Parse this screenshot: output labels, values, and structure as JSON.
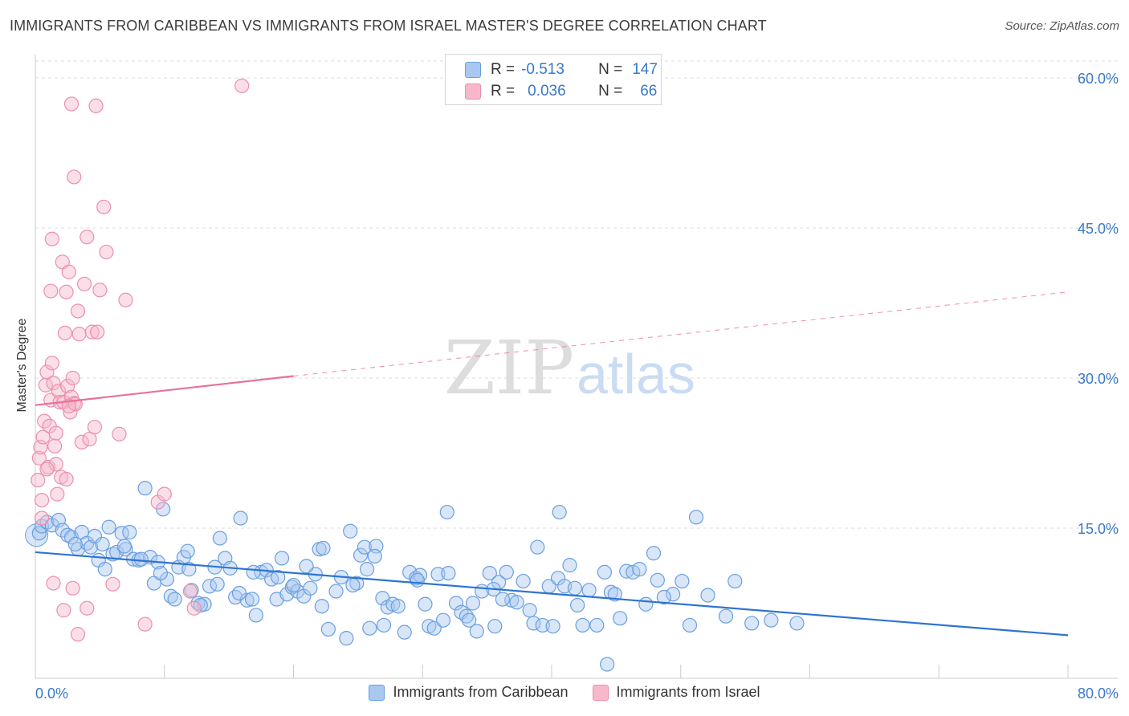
{
  "title": "IMMIGRANTS FROM CARIBBEAN VS IMMIGRANTS FROM ISRAEL MASTER'S DEGREE CORRELATION CHART",
  "source": "Source: ZipAtlas.com",
  "watermark": {
    "zip": "ZIP",
    "atlas": "atlas"
  },
  "colors": {
    "blue_fill": "#a8c8f0",
    "blue_stroke": "#6a9fe0",
    "blue_line": "#2f74d0",
    "pink_fill": "#f7b8cb",
    "pink_stroke": "#ec8fab",
    "pink_line": "#e8709a",
    "tick_label": "#3a78c9"
  },
  "stats": {
    "rows": [
      {
        "r_label": "R =",
        "r_value": "-0.513",
        "n_label": "N =",
        "n_value": "147"
      },
      {
        "r_label": "R =",
        "r_value": "0.036",
        "n_label": "N =",
        "n_value": "66"
      }
    ]
  },
  "legend": [
    "Immigrants from Caribbean",
    "Immigrants from Israel"
  ],
  "chart_data": {
    "type": "scatter",
    "xlabel": "",
    "ylabel": "Master's Degree",
    "xlim": [
      0,
      80
    ],
    "ylim": [
      0,
      62
    ],
    "x_tick_labels": [
      "0.0%",
      "80.0%"
    ],
    "y_ticks": [
      15,
      30,
      45,
      60
    ],
    "y_tick_labels": [
      "15.0%",
      "30.0%",
      "45.0%",
      "60.0%"
    ],
    "grid": "horizontal dashed",
    "legend_position": "bottom",
    "series": [
      {
        "name": "Immigrants from Caribbean",
        "color": "#a8c8f0",
        "trend": {
          "x": [
            0,
            80
          ],
          "y": [
            12.6,
            4.3
          ],
          "style": "solid"
        },
        "points": [
          [
            0.3,
            14.5
          ],
          [
            0.5,
            15.2
          ],
          [
            0.9,
            15.6
          ],
          [
            1.3,
            15.3
          ],
          [
            1.8,
            15.8
          ],
          [
            2.1,
            14.8
          ],
          [
            2.5,
            14.3
          ],
          [
            2.8,
            14.1
          ],
          [
            3.3,
            12.9
          ],
          [
            3.6,
            14.6
          ],
          [
            4.0,
            13.5
          ],
          [
            4.3,
            13.1
          ],
          [
            4.6,
            14.2
          ],
          [
            4.9,
            11.8
          ],
          [
            5.2,
            13.4
          ],
          [
            5.7,
            15.1
          ],
          [
            6.0,
            12.4
          ],
          [
            6.3,
            12.6
          ],
          [
            6.7,
            14.5
          ],
          [
            7.0,
            12.9
          ],
          [
            7.3,
            14.6
          ],
          [
            7.6,
            11.9
          ],
          [
            8.0,
            11.8
          ],
          [
            8.5,
            19.0
          ],
          [
            8.9,
            12.1
          ],
          [
            9.2,
            9.5
          ],
          [
            9.5,
            11.6
          ],
          [
            9.9,
            16.9
          ],
          [
            10.2,
            9.9
          ],
          [
            10.5,
            8.2
          ],
          [
            10.8,
            7.9
          ],
          [
            11.1,
            11.1
          ],
          [
            11.5,
            12.1
          ],
          [
            11.9,
            10.9
          ],
          [
            12.1,
            8.8
          ],
          [
            12.6,
            7.5
          ],
          [
            13.1,
            7.4
          ],
          [
            13.5,
            9.2
          ],
          [
            13.9,
            11.1
          ],
          [
            14.3,
            14.0
          ],
          [
            14.7,
            12.0
          ],
          [
            15.1,
            11.0
          ],
          [
            15.5,
            8.1
          ],
          [
            15.9,
            16.0
          ],
          [
            16.4,
            7.8
          ],
          [
            16.8,
            7.9
          ],
          [
            17.1,
            6.3
          ],
          [
            17.5,
            10.6
          ],
          [
            17.9,
            10.8
          ],
          [
            18.3,
            9.9
          ],
          [
            18.7,
            7.9
          ],
          [
            19.1,
            12.0
          ],
          [
            19.5,
            8.4
          ],
          [
            19.9,
            9.1
          ],
          [
            20.3,
            8.7
          ],
          [
            20.8,
            8.2
          ],
          [
            21.3,
            9.0
          ],
          [
            21.7,
            10.4
          ],
          [
            22.0,
            12.9
          ],
          [
            22.3,
            13.0
          ],
          [
            22.7,
            4.9
          ],
          [
            23.3,
            8.7
          ],
          [
            23.7,
            10.1
          ],
          [
            24.1,
            4.0
          ],
          [
            24.4,
            14.7
          ],
          [
            24.9,
            9.5
          ],
          [
            25.2,
            12.3
          ],
          [
            25.5,
            13.1
          ],
          [
            25.9,
            5.0
          ],
          [
            26.4,
            13.2
          ],
          [
            26.9,
            8.0
          ],
          [
            27.3,
            7.1
          ],
          [
            27.7,
            7.4
          ],
          [
            28.1,
            7.2
          ],
          [
            28.6,
            4.6
          ],
          [
            29.0,
            10.6
          ],
          [
            29.5,
            10.0
          ],
          [
            29.8,
            10.3
          ],
          [
            30.2,
            7.4
          ],
          [
            30.5,
            5.2
          ],
          [
            30.9,
            5.0
          ],
          [
            31.2,
            10.4
          ],
          [
            31.6,
            5.8
          ],
          [
            32.0,
            10.5
          ],
          [
            32.6,
            7.5
          ],
          [
            33.0,
            6.6
          ],
          [
            33.4,
            6.2
          ],
          [
            33.9,
            7.5
          ],
          [
            34.2,
            4.7
          ],
          [
            34.6,
            8.7
          ],
          [
            35.2,
            10.5
          ],
          [
            35.6,
            5.2
          ],
          [
            35.9,
            9.6
          ],
          [
            36.5,
            10.6
          ],
          [
            36.9,
            7.8
          ],
          [
            37.3,
            7.6
          ],
          [
            37.8,
            9.7
          ],
          [
            38.3,
            6.8
          ],
          [
            38.6,
            5.5
          ],
          [
            38.9,
            13.1
          ],
          [
            39.3,
            5.3
          ],
          [
            39.8,
            9.2
          ],
          [
            40.1,
            5.2
          ],
          [
            40.5,
            10.0
          ],
          [
            41.0,
            9.2
          ],
          [
            41.4,
            11.3
          ],
          [
            41.8,
            9.0
          ],
          [
            42.4,
            5.3
          ],
          [
            42.9,
            8.8
          ],
          [
            43.5,
            5.3
          ],
          [
            44.1,
            10.6
          ],
          [
            44.6,
            8.6
          ],
          [
            44.9,
            8.4
          ],
          [
            45.3,
            6.0
          ],
          [
            45.8,
            10.7
          ],
          [
            46.3,
            10.6
          ],
          [
            46.8,
            10.9
          ],
          [
            47.3,
            7.4
          ],
          [
            48.2,
            9.8
          ],
          [
            49.4,
            8.4
          ],
          [
            50.1,
            9.7
          ],
          [
            50.7,
            5.3
          ],
          [
            51.2,
            16.1
          ],
          [
            52.1,
            8.3
          ],
          [
            53.5,
            6.2
          ],
          [
            55.5,
            5.5
          ],
          [
            57.0,
            5.8
          ],
          [
            59.0,
            5.5
          ],
          [
            31.9,
            16.6
          ],
          [
            40.6,
            16.6
          ],
          [
            26.3,
            12.2
          ],
          [
            16.9,
            10.6
          ],
          [
            22.2,
            7.2
          ],
          [
            12.8,
            7.3
          ],
          [
            35.5,
            8.9
          ],
          [
            29.6,
            9.8
          ],
          [
            18.8,
            10.1
          ],
          [
            24.6,
            9.3
          ],
          [
            8.2,
            11.9
          ],
          [
            14.1,
            9.4
          ],
          [
            20.0,
            9.3
          ],
          [
            27.0,
            5.3
          ],
          [
            33.6,
            5.8
          ],
          [
            42.0,
            7.3
          ],
          [
            47.9,
            12.5
          ],
          [
            5.4,
            10.9
          ],
          [
            3.1,
            13.4
          ],
          [
            6.9,
            13.2
          ],
          [
            9.7,
            10.5
          ],
          [
            11.8,
            12.7
          ],
          [
            15.8,
            8.5
          ],
          [
            21.0,
            11.2
          ],
          [
            25.7,
            10.9
          ],
          [
            36.2,
            7.9
          ],
          [
            44.3,
            1.4
          ],
          [
            48.7,
            8.1
          ],
          [
            54.2,
            9.7
          ]
        ]
      },
      {
        "name": "Immigrants from Israel",
        "color": "#f7b8cb",
        "trend": {
          "x": [
            0,
            20
          ],
          "y": [
            27.3,
            30.2
          ],
          "x_dashed": [
            20,
            80
          ],
          "y_dashed": [
            30.2,
            38.6
          ],
          "style": "solid then dashed"
        },
        "points": [
          [
            0.2,
            19.8
          ],
          [
            0.3,
            22.0
          ],
          [
            0.4,
            23.1
          ],
          [
            0.5,
            17.8
          ],
          [
            0.6,
            24.1
          ],
          [
            0.7,
            25.7
          ],
          [
            0.8,
            29.3
          ],
          [
            0.9,
            30.6
          ],
          [
            1.0,
            21.1
          ],
          [
            1.1,
            25.2
          ],
          [
            1.2,
            27.8
          ],
          [
            1.3,
            31.5
          ],
          [
            1.4,
            29.5
          ],
          [
            1.5,
            23.2
          ],
          [
            1.6,
            21.4
          ],
          [
            1.7,
            18.4
          ],
          [
            1.8,
            28.7
          ],
          [
            1.9,
            27.6
          ],
          [
            2.0,
            20.1
          ],
          [
            2.1,
            41.6
          ],
          [
            2.2,
            27.6
          ],
          [
            2.3,
            34.5
          ],
          [
            2.4,
            38.6
          ],
          [
            2.5,
            29.2
          ],
          [
            2.6,
            40.6
          ],
          [
            2.7,
            26.6
          ],
          [
            2.8,
            28.1
          ],
          [
            2.9,
            30.0
          ],
          [
            3.0,
            27.5
          ],
          [
            3.1,
            27.4
          ],
          [
            1.2,
            38.7
          ],
          [
            1.3,
            43.9
          ],
          [
            2.6,
            27.2
          ],
          [
            3.3,
            36.7
          ],
          [
            3.4,
            34.4
          ],
          [
            3.6,
            23.6
          ],
          [
            3.8,
            39.4
          ],
          [
            4.0,
            44.1
          ],
          [
            4.2,
            23.9
          ],
          [
            4.4,
            34.6
          ],
          [
            4.6,
            25.1
          ],
          [
            4.8,
            34.6
          ],
          [
            5.0,
            38.8
          ],
          [
            5.3,
            47.1
          ],
          [
            5.5,
            42.6
          ],
          [
            6.0,
            9.4
          ],
          [
            6.5,
            24.4
          ],
          [
            7.0,
            37.8
          ],
          [
            2.8,
            57.4
          ],
          [
            4.7,
            57.2
          ],
          [
            3.0,
            50.1
          ],
          [
            16.0,
            59.2
          ],
          [
            1.4,
            9.5
          ],
          [
            2.2,
            6.8
          ],
          [
            2.9,
            9.0
          ],
          [
            3.3,
            4.4
          ],
          [
            4.0,
            7.0
          ],
          [
            8.5,
            5.4
          ],
          [
            9.5,
            17.6
          ],
          [
            10.0,
            18.4
          ],
          [
            12.0,
            8.7
          ],
          [
            12.3,
            7.0
          ],
          [
            1.6,
            24.5
          ],
          [
            0.9,
            20.9
          ],
          [
            2.4,
            19.9
          ],
          [
            0.5,
            16.0
          ]
        ]
      }
    ]
  }
}
